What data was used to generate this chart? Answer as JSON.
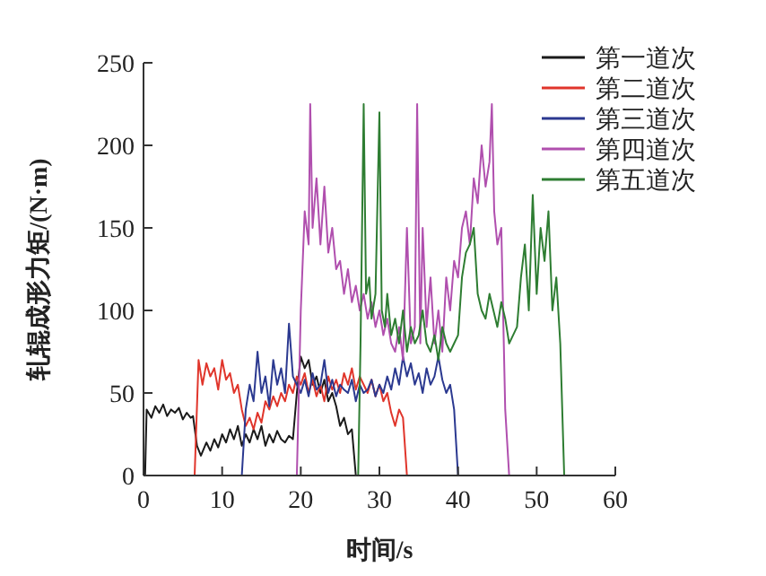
{
  "chart_data": {
    "type": "line",
    "xlabel": "时间/s",
    "ylabel": "轧辊成形力矩/(N·m)",
    "xlim": [
      0,
      60
    ],
    "ylim": [
      0,
      250
    ],
    "xticks": [
      0,
      10,
      20,
      30,
      40,
      50,
      60
    ],
    "yticks": [
      0,
      50,
      100,
      150,
      200,
      250
    ],
    "legend": "top right",
    "marker": "none",
    "line_style": "solid",
    "series": [
      {
        "name": "第一道次",
        "color": "#1a1a1a",
        "x": [
          0.2,
          0.4,
          1,
          1.5,
          2,
          2.5,
          3,
          3.5,
          4,
          4.5,
          5,
          5.5,
          6,
          6.3,
          6.8,
          7.3,
          8,
          8.5,
          9,
          9.5,
          10,
          10.5,
          11,
          11.5,
          12,
          12.5,
          13,
          13.5,
          14,
          14.5,
          15,
          15.5,
          16,
          16.5,
          17,
          17.5,
          18,
          18.5,
          19,
          19.5,
          20,
          20.5,
          21,
          21.5,
          22,
          22.5,
          23,
          23.5,
          24,
          24.5,
          25,
          25.5,
          26,
          26.5,
          27
        ],
        "values": [
          0,
          40,
          35,
          42,
          38,
          43,
          36,
          40,
          38,
          41,
          34,
          38,
          35,
          36,
          18,
          12,
          20,
          15,
          22,
          17,
          25,
          20,
          28,
          22,
          30,
          18,
          25,
          20,
          28,
          22,
          30,
          18,
          25,
          20,
          27,
          22,
          20,
          24,
          22,
          50,
          72,
          65,
          70,
          55,
          60,
          50,
          58,
          45,
          50,
          42,
          30,
          35,
          25,
          28,
          0
        ]
      },
      {
        "name": "第二道次",
        "color": "#e0352b",
        "x": [
          6.5,
          7,
          7.5,
          8,
          8.5,
          9,
          9.5,
          10,
          10.5,
          11,
          11.5,
          12,
          12.5,
          13,
          13.5,
          14,
          14.5,
          15,
          15.5,
          16,
          16.5,
          17,
          17.5,
          18,
          18.5,
          19,
          19.5,
          20,
          20.5,
          21,
          21.5,
          22,
          22.5,
          23,
          23.5,
          24,
          24.5,
          25,
          25.5,
          26,
          26.5,
          27,
          27.5,
          28,
          28.5,
          29,
          29.5,
          30,
          30.5,
          31,
          31.5,
          32,
          32.5,
          33,
          33.5
        ],
        "values": [
          0,
          70,
          55,
          68,
          60,
          65,
          52,
          70,
          58,
          62,
          50,
          55,
          40,
          30,
          35,
          28,
          38,
          32,
          45,
          40,
          48,
          42,
          50,
          45,
          55,
          50,
          60,
          55,
          62,
          50,
          58,
          48,
          55,
          45,
          60,
          52,
          58,
          50,
          62,
          55,
          65,
          52,
          60,
          55,
          50,
          58,
          48,
          55,
          45,
          50,
          38,
          30,
          40,
          35,
          0
        ]
      },
      {
        "name": "第三道次",
        "color": "#2b3990",
        "x": [
          12.5,
          13,
          13.5,
          14,
          14.5,
          15,
          15.5,
          16,
          16.5,
          17,
          17.5,
          18,
          18.5,
          19,
          19.5,
          20,
          20.5,
          21,
          21.5,
          22,
          22.5,
          23,
          23.5,
          24,
          24.5,
          25,
          25.5,
          26,
          26.5,
          27,
          27.5,
          28,
          28.5,
          29,
          29.5,
          30,
          30.5,
          31,
          31.5,
          32,
          32.5,
          33,
          33.5,
          34,
          34.5,
          35,
          35.5,
          36,
          36.5,
          37,
          37.5,
          38,
          38.5,
          39,
          39.5,
          40
        ],
        "values": [
          0,
          40,
          55,
          45,
          75,
          50,
          60,
          42,
          70,
          55,
          65,
          50,
          92,
          60,
          55,
          50,
          58,
          48,
          62,
          52,
          55,
          70,
          50,
          58,
          48,
          55,
          52,
          50,
          58,
          45,
          55,
          50,
          52,
          58,
          48,
          55,
          50,
          60,
          52,
          65,
          55,
          72,
          60,
          68,
          55,
          62,
          50,
          65,
          55,
          60,
          72,
          58,
          50,
          55,
          40,
          0
        ]
      },
      {
        "name": "第四道次",
        "color": "#b04fae",
        "x": [
          19.5,
          20,
          20.5,
          21,
          21.2,
          21.5,
          22,
          22.5,
          23,
          23.5,
          24,
          24.5,
          25,
          25.5,
          26,
          26.5,
          27,
          27.5,
          28,
          28.5,
          29,
          29.5,
          30,
          30.5,
          31,
          31.5,
          32,
          32.5,
          33,
          33.5,
          34,
          34.5,
          34.8,
          35.2,
          35.5,
          36,
          36.5,
          37,
          37.5,
          38,
          38.5,
          39,
          39.5,
          40,
          40.5,
          41,
          41.5,
          42,
          42.5,
          43,
          43.5,
          44,
          44.3,
          44.6,
          45,
          45.5,
          46,
          46.5
        ],
        "values": [
          0,
          100,
          160,
          140,
          225,
          150,
          180,
          140,
          175,
          135,
          150,
          125,
          130,
          110,
          125,
          105,
          115,
          100,
          110,
          95,
          105,
          90,
          100,
          85,
          95,
          80,
          75,
          90,
          70,
          150,
          80,
          90,
          225,
          80,
          150,
          90,
          120,
          80,
          100,
          75,
          120,
          100,
          130,
          120,
          150,
          160,
          140,
          180,
          165,
          200,
          175,
          190,
          225,
          160,
          140,
          150,
          40,
          0
        ]
      },
      {
        "name": "第五道次",
        "color": "#2e7d32",
        "x": [
          27.3,
          27.6,
          28,
          28.3,
          28.7,
          29,
          29.5,
          30,
          30.3,
          30.7,
          31,
          31.5,
          32,
          32.5,
          33,
          33.5,
          34,
          34.5,
          35,
          35.5,
          36,
          36.5,
          37,
          37.5,
          38,
          38.5,
          39,
          39.5,
          40,
          40.5,
          41,
          41.5,
          42,
          42.5,
          43,
          43.5,
          44,
          44.5,
          45,
          45.5,
          46,
          46.5,
          47,
          47.5,
          48,
          48.5,
          49,
          49.5,
          50,
          50.5,
          51,
          51.5,
          52,
          52.5,
          53,
          53.5,
          54
        ],
        "values": [
          0,
          80,
          225,
          110,
          120,
          95,
          110,
          220,
          100,
          90,
          110,
          85,
          95,
          80,
          100,
          75,
          90,
          80,
          85,
          100,
          80,
          75,
          85,
          70,
          90,
          80,
          75,
          80,
          85,
          120,
          135,
          140,
          150,
          110,
          100,
          95,
          110,
          100,
          90,
          105,
          95,
          80,
          85,
          90,
          120,
          140,
          100,
          170,
          110,
          150,
          130,
          160,
          100,
          120,
          80,
          0,
          0
        ]
      }
    ]
  }
}
